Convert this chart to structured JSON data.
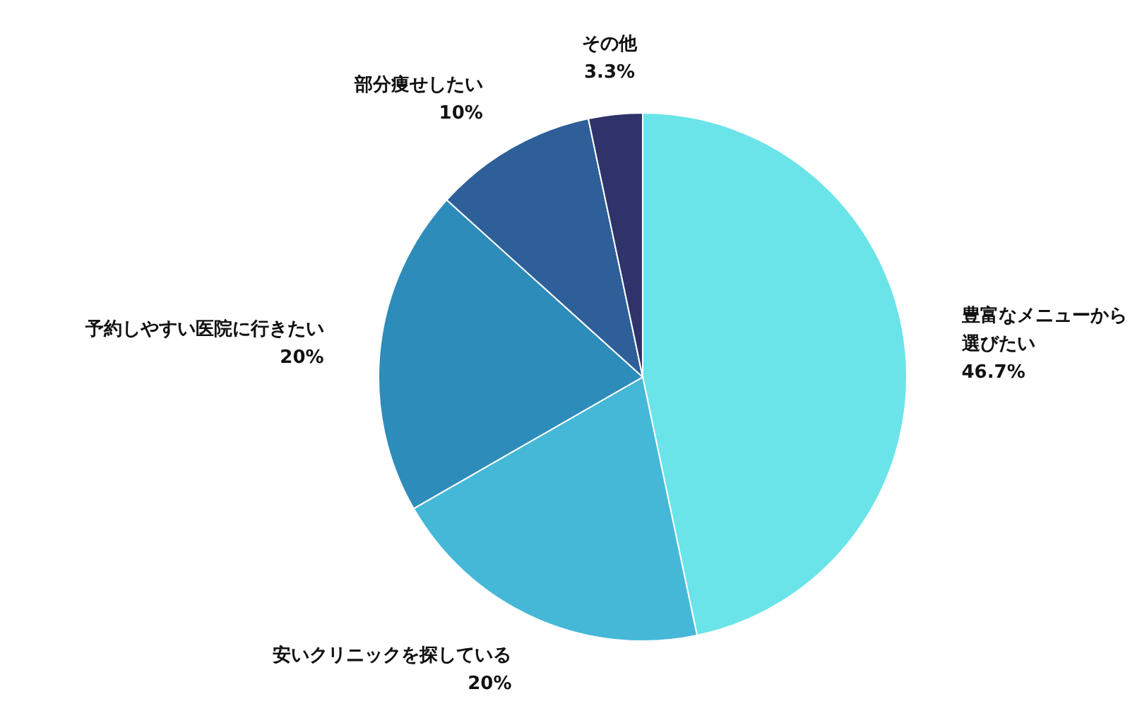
{
  "chart_data": {
    "type": "pie",
    "categories": [
      "豊富なメニューから選びたい",
      "安いクリニックを探している",
      "予約しやすい医院に行きたい",
      "部分痩せしたい",
      "その他"
    ],
    "values": [
      46.7,
      20,
      20,
      10,
      3.3
    ],
    "colors": [
      "#6ae4e8",
      "#45b8d8",
      "#2e8cba",
      "#2e5f98",
      "#2f336a"
    ],
    "value_labels": [
      "46.7%",
      "20%",
      "20%",
      "10%",
      "3.3%"
    ]
  }
}
